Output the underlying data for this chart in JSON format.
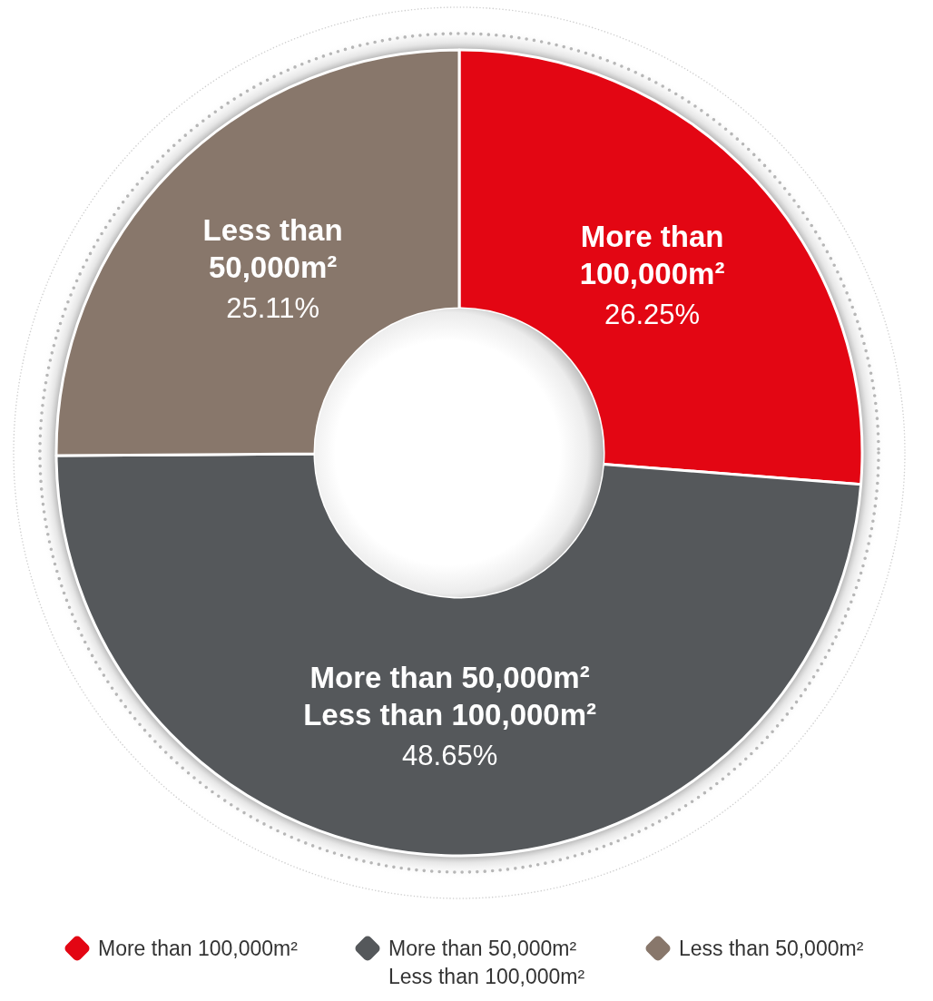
{
  "chart_data": {
    "type": "donut",
    "categories": [
      "More than 100,000m²",
      "More than 50,000m² Less than 100,000m²",
      "Less than 50,000m²"
    ],
    "values": [
      26.25,
      48.65,
      25.11
    ],
    "colors": [
      "#e30613",
      "#55585b",
      "#88776b"
    ],
    "value_labels": [
      "26.25%",
      "48.65%",
      "25.11%"
    ],
    "legend": "bottom"
  }
}
